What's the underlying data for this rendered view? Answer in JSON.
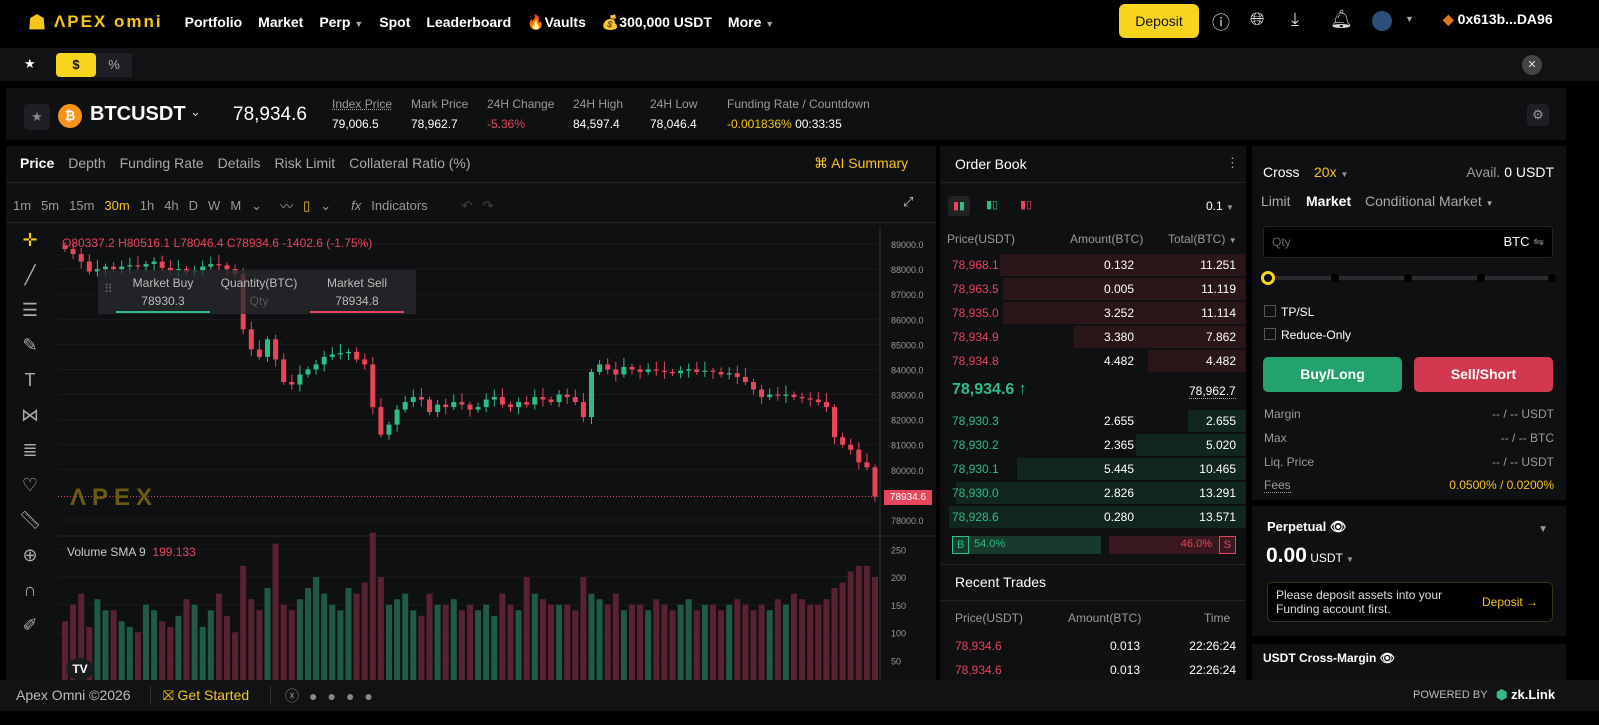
{
  "nav": {
    "brand": "ΛPEX omni",
    "items": [
      "Portfolio",
      "Market",
      "Perp",
      "Spot",
      "Leaderboard",
      "Vaults",
      "300,000 USDT",
      "More"
    ],
    "deposit": "Deposit",
    "wallet": "0x613b...DA96"
  },
  "filter": {
    "currency": "$",
    "percent": "%"
  },
  "ticker": {
    "symbol": "BTCUSDT",
    "last": "78,934.6",
    "stats": [
      {
        "label": "Index Price",
        "value": "79,006.5"
      },
      {
        "label": "Mark Price",
        "value": "78,962.7"
      },
      {
        "label": "24H Change",
        "value": "-5.36%"
      },
      {
        "label": "24H High",
        "value": "84,597.4"
      },
      {
        "label": "24H Low",
        "value": "78,046.4"
      },
      {
        "label": "Funding Rate / Countdown",
        "value": "-0.001836%",
        "countdown": "00:33:35"
      }
    ]
  },
  "chart": {
    "tabs": [
      "Price",
      "Depth",
      "Funding Rate",
      "Details",
      "Risk Limit",
      "Collateral Ratio  (%)"
    ],
    "ai": "AI Summary",
    "timeframes": [
      "1m",
      "5m",
      "15m",
      "30m",
      "1h",
      "4h",
      "D",
      "W",
      "M"
    ],
    "active_tf": "30m",
    "indicators": "Indicators",
    "ohlc": {
      "o": "O80337.2",
      "h": "H80516.1",
      "l": "L78046.4",
      "c": "C78934.6",
      "chg": "-1402.6 (-1.75%)"
    },
    "quick": {
      "buy": "Market Buy",
      "buy_price": "78930.3",
      "qty": "Quantity(BTC)",
      "qty_ph": "Qty",
      "sell": "Market Sell",
      "sell_price": "78934.8"
    },
    "watermark": "ΛPEX",
    "volume_label": "Volume SMA 9",
    "volume_value": "199.133",
    "price_tag": "78934.6"
  },
  "chart_data": {
    "type": "candlestick",
    "ylim": [
      77600,
      89300
    ],
    "yticks": [
      "89000.0",
      "88000.0",
      "87000.0",
      "86000.0",
      "85000.0",
      "84000.0",
      "83000.0",
      "82000.0",
      "81000.0",
      "80000.0",
      "78000.0"
    ],
    "volume_ticks": [
      "250",
      "200",
      "150",
      "100",
      "50"
    ],
    "closes": [
      88800,
      88600,
      88300,
      87900,
      88000,
      88100,
      88000,
      88100,
      88150,
      88100,
      88200,
      88300,
      88050,
      87950,
      88000,
      87900,
      87950,
      88100,
      88200,
      88150,
      88000,
      87800,
      85600,
      84800,
      84500,
      85200,
      84400,
      83500,
      83400,
      83800,
      84000,
      84200,
      84500,
      84600,
      84650,
      84700,
      84400,
      84200,
      82500,
      81400,
      81800,
      82400,
      82700,
      82900,
      82800,
      82300,
      82600,
      82500,
      82700,
      82600,
      82400,
      82500,
      82800,
      82900,
      82600,
      82500,
      82700,
      82600,
      82900,
      82800,
      82700,
      83000,
      82900,
      82700,
      82100,
      83900,
      84200,
      84000,
      83800,
      84100,
      84000,
      83900,
      84000,
      83950,
      83900,
      83850,
      83950,
      84000,
      83900,
      83950,
      83900,
      83800,
      83850,
      83700,
      83500,
      83200,
      82900,
      83000,
      82950,
      83000,
      82900,
      82850,
      82800,
      82700,
      82500,
      81300,
      81000,
      80800,
      80300,
      80100,
      78934.6
    ],
    "volumes": [
      120,
      150,
      170,
      110,
      160,
      140,
      140,
      120,
      110,
      100,
      150,
      140,
      120,
      110,
      130,
      160,
      150,
      110,
      140,
      170,
      130,
      100,
      220,
      160,
      140,
      180,
      260,
      150,
      140,
      160,
      180,
      200,
      170,
      150,
      140,
      180,
      170,
      190,
      280,
      200,
      150,
      160,
      170,
      140,
      130,
      170,
      150,
      150,
      160,
      140,
      150,
      140,
      150,
      130,
      170,
      150,
      140,
      200,
      170,
      160,
      150,
      150,
      150,
      140,
      200,
      170,
      160,
      150,
      170,
      140,
      150,
      150,
      140,
      160,
      150,
      140,
      150,
      160,
      140,
      150,
      150,
      140,
      150,
      160,
      150,
      140,
      150,
      140,
      160,
      150,
      170,
      160,
      150,
      150,
      160,
      180,
      190,
      210,
      220,
      220,
      200
    ]
  },
  "orderbook": {
    "title": "Order Book",
    "step": "0.1",
    "headers": [
      "Price(USDT)",
      "Amount(BTC)",
      "Total(BTC)"
    ],
    "asks": [
      [
        "78,968.1",
        "0.132",
        "11.251"
      ],
      [
        "78,963.5",
        "0.005",
        "11.119"
      ],
      [
        "78,935.0",
        "3.252",
        "11.114"
      ],
      [
        "78,934.9",
        "3.380",
        "7.862"
      ],
      [
        "78,934.8",
        "4.482",
        "4.482"
      ]
    ],
    "last": "78,934.6 ↑",
    "mark": "78,962.7",
    "bids": [
      [
        "78,930.3",
        "2.655",
        "2.655"
      ],
      [
        "78,930.2",
        "2.365",
        "5.020"
      ],
      [
        "78,930.1",
        "5.445",
        "10.465"
      ],
      [
        "78,930.0",
        "2.826",
        "13.291"
      ],
      [
        "78,928.6",
        "0.280",
        "13.571"
      ]
    ],
    "ratio": {
      "b": "B",
      "b_pct": "54.0%",
      "s_pct": "46.0%",
      "s": "S",
      "buy_fraction": 0.54
    }
  },
  "trades": {
    "title": "Recent Trades",
    "headers": [
      "Price(USDT)",
      "Amount(BTC)",
      "Time"
    ],
    "rows": [
      [
        "78,934.6",
        "0.013",
        "22:26:24"
      ],
      [
        "78,934.6",
        "0.013",
        "22:26:24"
      ]
    ]
  },
  "form": {
    "margin_mode": "Cross",
    "leverage": "20x",
    "avail_label": "Avail.",
    "avail": "0 USDT",
    "types": [
      "Limit",
      "Market",
      "Conditional Market"
    ],
    "qty_ph": "Qty",
    "qty_unit": "BTC",
    "tpsl": "TP/SL",
    "reduce": "Reduce-Only",
    "buy": "Buy/Long",
    "sell": "Sell/Short",
    "rows": [
      {
        "label": "Margin",
        "value": "-- / -- USDT"
      },
      {
        "label": "Max",
        "value": "-- / -- BTC"
      },
      {
        "label": "Liq. Price",
        "value": "-- / -- USDT"
      },
      {
        "label": "Fees",
        "value": "0.0500% / 0.0200%"
      }
    ],
    "slider_value": 0
  },
  "account": {
    "title": "Perpetual",
    "balance": "0.00",
    "unit": "USDT",
    "notice": "Please deposit assets into your Funding account first.",
    "deposit": "Deposit →",
    "cross": "USDT Cross-Margin"
  },
  "footer": {
    "copyright": "Apex Omni ©2026",
    "get_started": "Get Started",
    "powered": "POWERED BY",
    "partner": "zk.Link"
  },
  "colors": {
    "accent": "#f7d51e",
    "up": "#2ebd85",
    "down": "#e8445a"
  }
}
